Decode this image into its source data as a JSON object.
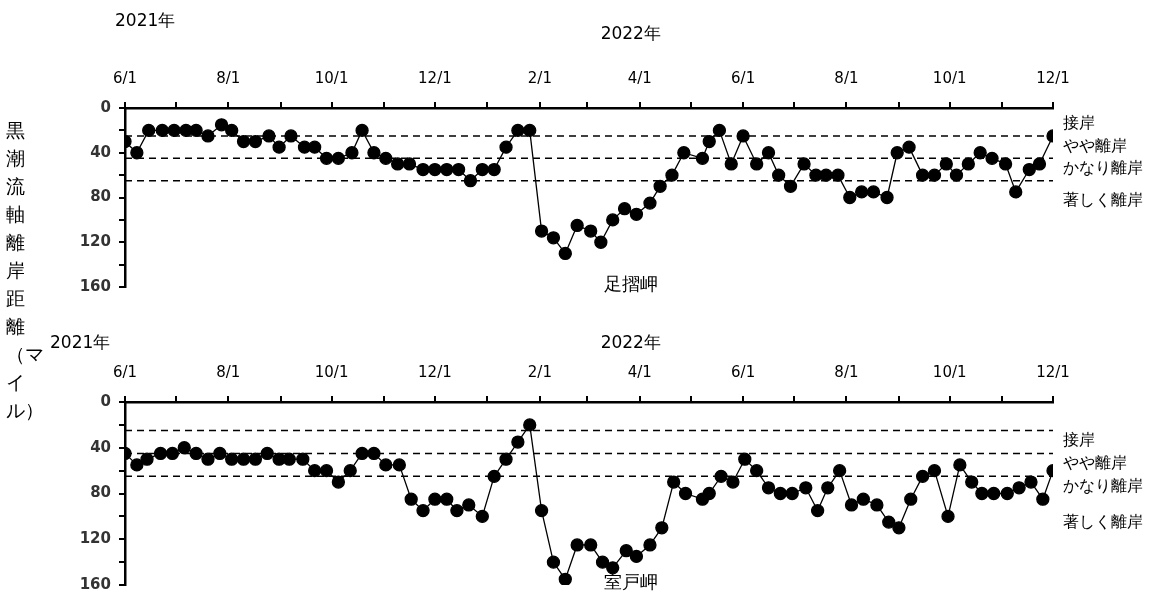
{
  "chart_data": [
    {
      "type": "line",
      "title": "足摺岬",
      "ylabel": "黒潮流軸離岸距離（マイル）",
      "x": [
        "2021-06-01",
        "2021-06-08",
        "2021-06-15",
        "2021-06-23",
        "2021-06-30",
        "2021-07-07",
        "2021-07-13",
        "2021-07-20",
        "2021-07-28",
        "2021-08-03",
        "2021-08-10",
        "2021-08-17",
        "2021-08-25",
        "2021-08-31",
        "2021-09-07",
        "2021-09-15",
        "2021-09-21",
        "2021-09-28",
        "2021-10-05",
        "2021-10-13",
        "2021-10-19",
        "2021-10-26",
        "2021-11-02",
        "2021-11-09",
        "2021-11-16",
        "2021-11-24",
        "2021-12-01",
        "2021-12-08",
        "2021-12-15",
        "2021-12-22",
        "2021-12-29",
        "2022-01-05",
        "2022-01-12",
        "2022-01-19",
        "2022-01-26",
        "2022-02-02",
        "2022-02-09",
        "2022-02-16",
        "2022-02-23",
        "2022-03-03",
        "2022-03-09",
        "2022-03-16",
        "2022-03-23",
        "2022-03-30",
        "2022-04-07",
        "2022-04-13",
        "2022-04-20",
        "2022-04-27",
        "2022-05-08",
        "2022-05-12",
        "2022-05-18",
        "2022-05-25",
        "2022-06-01",
        "2022-06-09",
        "2022-06-16",
        "2022-06-22",
        "2022-06-29",
        "2022-07-07",
        "2022-07-14",
        "2022-07-20",
        "2022-07-27",
        "2022-08-03",
        "2022-08-10",
        "2022-08-17",
        "2022-08-25",
        "2022-08-31",
        "2022-09-07",
        "2022-09-15",
        "2022-09-22",
        "2022-09-29",
        "2022-10-05",
        "2022-10-12",
        "2022-10-19",
        "2022-10-26",
        "2022-11-03",
        "2022-11-09",
        "2022-11-17",
        "2022-11-23",
        "2022-12-01"
      ],
      "series": [
        {
          "color": "#000000",
          "values": [
            30,
            40,
            20,
            20,
            20,
            20,
            20,
            25,
            15,
            20,
            30,
            30,
            25,
            35,
            25,
            35,
            35,
            45,
            45,
            40,
            20,
            40,
            45,
            50,
            50,
            55,
            55,
            55,
            55,
            65,
            55,
            55,
            35,
            20,
            20,
            110,
            116,
            130,
            105,
            110,
            120,
            100,
            90,
            95,
            85,
            70,
            60,
            40,
            45,
            30,
            20,
            50,
            25,
            50,
            40,
            60,
            70,
            50,
            60,
            60,
            60,
            80,
            75,
            75,
            80,
            40,
            35,
            60,
            60,
            50,
            60,
            50,
            40,
            45,
            50,
            75,
            55,
            50,
            25
          ]
        }
      ],
      "xlim": [
        "2021-06-01",
        "2022-12-01"
      ],
      "xticks": [
        {
          "value": "2021-06-01",
          "label": "6/1"
        },
        {
          "value": "2021-07-01",
          "label": null
        },
        {
          "value": "2021-08-01",
          "label": "8/1"
        },
        {
          "value": "2021-09-01",
          "label": null
        },
        {
          "value": "2021-10-01",
          "label": "10/1"
        },
        {
          "value": "2021-11-01",
          "label": null
        },
        {
          "value": "2021-12-01",
          "label": "12/1"
        },
        {
          "value": "2022-01-01",
          "label": null
        },
        {
          "value": "2022-02-01",
          "label": "2/1"
        },
        {
          "value": "2022-03-01",
          "label": null
        },
        {
          "value": "2022-04-01",
          "label": "4/1"
        },
        {
          "value": "2022-05-01",
          "label": null
        },
        {
          "value": "2022-06-01",
          "label": "6/1"
        },
        {
          "value": "2022-07-01",
          "label": null
        },
        {
          "value": "2022-08-01",
          "label": "8/1"
        },
        {
          "value": "2022-09-01",
          "label": null
        },
        {
          "value": "2022-10-01",
          "label": "10/1"
        },
        {
          "value": "2022-11-01",
          "label": null
        },
        {
          "value": "2022-12-01",
          "label": "12/1"
        }
      ],
      "ylim": [
        160,
        0
      ],
      "yticks": [
        0,
        {
          "value": 20,
          "label": null
        },
        40,
        {
          "value": 60,
          "label": null
        },
        80,
        {
          "value": 100,
          "label": null
        },
        120,
        {
          "value": 140,
          "label": null
        },
        160
      ],
      "ref_lines": [
        {
          "axis": "y",
          "value": 25,
          "line_style": "dashed"
        },
        {
          "axis": "y",
          "value": 45,
          "line_style": "dashed"
        },
        {
          "axis": "y",
          "value": 65,
          "line_style": "dashed"
        }
      ],
      "annotations": [
        "2021年",
        "2022年",
        "接岸",
        "やや離岸",
        "かなり離岸",
        "著しく離岸"
      ],
      "grid": false,
      "legend": false,
      "marker": "circle",
      "line_style": "solid"
    },
    {
      "type": "line",
      "title": "室戸岬",
      "x": [
        "2021-06-01",
        "2021-06-08",
        "2021-06-14",
        "2021-06-22",
        "2021-06-29",
        "2021-07-06",
        "2021-07-13",
        "2021-07-20",
        "2021-07-27",
        "2021-08-03",
        "2021-08-10",
        "2021-08-17",
        "2021-08-24",
        "2021-08-31",
        "2021-09-06",
        "2021-09-14",
        "2021-09-21",
        "2021-09-28",
        "2021-10-05",
        "2021-10-12",
        "2021-10-19",
        "2021-10-26",
        "2021-11-02",
        "2021-11-10",
        "2021-11-17",
        "2021-11-24",
        "2021-12-01",
        "2021-12-08",
        "2021-12-14",
        "2021-12-21",
        "2021-12-29",
        "2022-01-05",
        "2022-01-12",
        "2022-01-19",
        "2022-01-26",
        "2022-02-02",
        "2022-02-09",
        "2022-02-16",
        "2022-02-23",
        "2022-03-03",
        "2022-03-10",
        "2022-03-16",
        "2022-03-24",
        "2022-03-30",
        "2022-04-07",
        "2022-04-14",
        "2022-04-21",
        "2022-04-28",
        "2022-05-08",
        "2022-05-12",
        "2022-05-19",
        "2022-05-26",
        "2022-06-02",
        "2022-06-09",
        "2022-06-16",
        "2022-06-23",
        "2022-06-30",
        "2022-07-08",
        "2022-07-15",
        "2022-07-21",
        "2022-07-28",
        "2022-08-04",
        "2022-08-11",
        "2022-08-19",
        "2022-08-26",
        "2022-09-01",
        "2022-09-08",
        "2022-09-15",
        "2022-09-22",
        "2022-09-30",
        "2022-10-07",
        "2022-10-14",
        "2022-10-20",
        "2022-10-27",
        "2022-11-04",
        "2022-11-11",
        "2022-11-18",
        "2022-11-25",
        "2022-12-01"
      ],
      "series": [
        {
          "color": "#000000",
          "values": [
            45,
            55,
            50,
            45,
            45,
            40,
            45,
            50,
            45,
            50,
            50,
            50,
            45,
            50,
            50,
            50,
            60,
            60,
            70,
            60,
            45,
            45,
            55,
            55,
            85,
            95,
            85,
            85,
            95,
            90,
            100,
            65,
            50,
            35,
            20,
            95,
            140,
            155,
            125,
            125,
            140,
            145,
            130,
            135,
            125,
            110,
            70,
            80,
            85,
            80,
            65,
            70,
            50,
            60,
            75,
            80,
            80,
            75,
            95,
            75,
            60,
            90,
            85,
            90,
            105,
            110,
            85,
            65,
            60,
            100,
            55,
            70,
            80,
            80,
            80,
            75,
            70,
            85,
            60
          ]
        }
      ],
      "xlim": [
        "2021-06-01",
        "2022-12-01"
      ],
      "xticks": [
        {
          "value": "2021-06-01",
          "label": "6/1"
        },
        {
          "value": "2021-07-01",
          "label": null
        },
        {
          "value": "2021-08-01",
          "label": "8/1"
        },
        {
          "value": "2021-09-01",
          "label": null
        },
        {
          "value": "2021-10-01",
          "label": "10/1"
        },
        {
          "value": "2021-11-01",
          "label": null
        },
        {
          "value": "2021-12-01",
          "label": "12/1"
        },
        {
          "value": "2022-01-01",
          "label": null
        },
        {
          "value": "2022-02-01",
          "label": "2/1"
        },
        {
          "value": "2022-03-01",
          "label": null
        },
        {
          "value": "2022-04-01",
          "label": "4/1"
        },
        {
          "value": "2022-05-01",
          "label": null
        },
        {
          "value": "2022-06-01",
          "label": "6/1"
        },
        {
          "value": "2022-07-01",
          "label": null
        },
        {
          "value": "2022-08-01",
          "label": "8/1"
        },
        {
          "value": "2022-09-01",
          "label": null
        },
        {
          "value": "2022-10-01",
          "label": "10/1"
        },
        {
          "value": "2022-11-01",
          "label": null
        },
        {
          "value": "2022-12-01",
          "label": "12/1"
        }
      ],
      "ylim": [
        160,
        0
      ],
      "yticks": [
        0,
        {
          "value": 20,
          "label": null
        },
        40,
        {
          "value": 60,
          "label": null
        },
        80,
        {
          "value": 100,
          "label": null
        },
        120,
        {
          "value": 140,
          "label": null
        },
        160
      ],
      "ref_lines": [
        {
          "axis": "y",
          "value": 25,
          "line_style": "dashed"
        },
        {
          "axis": "y",
          "value": 45,
          "line_style": "dashed"
        },
        {
          "axis": "y",
          "value": 65,
          "line_style": "dashed"
        }
      ],
      "annotations": [
        "2021年",
        "2022年",
        "接岸",
        "やや離岸",
        "かなり離岸",
        "著しく離岸"
      ],
      "grid": false,
      "legend": false,
      "marker": "circle",
      "line_style": "solid"
    }
  ]
}
